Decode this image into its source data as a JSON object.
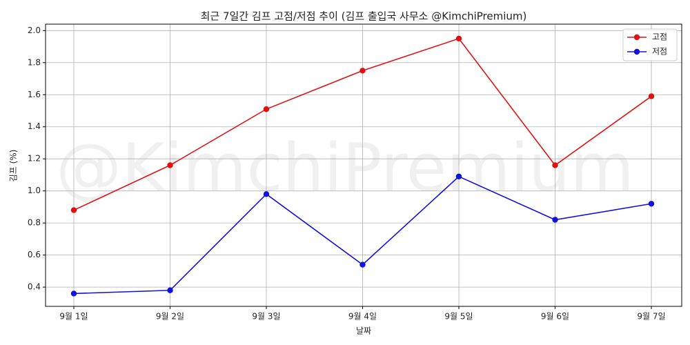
{
  "chart_data": {
    "type": "line",
    "title": "최근 7일간 김프 고점/저점 추이 (김프 출입국 사무소 @KimchiPremium)",
    "watermark": "@KimchiPremium",
    "x_label": "날짜",
    "y_label": "김프 (%)",
    "categories": [
      "9월 1일",
      "9월 2일",
      "9월 3일",
      "9월 4일",
      "9월 5일",
      "9월 6일",
      "9월 7일"
    ],
    "series": [
      {
        "name": "고점",
        "color": "#e01010",
        "values": [
          0.88,
          1.16,
          1.51,
          1.75,
          1.95,
          1.16,
          1.59
        ]
      },
      {
        "name": "저점",
        "color": "#1010e0",
        "values": [
          0.36,
          0.38,
          0.98,
          0.54,
          1.09,
          0.82,
          0.92
        ]
      }
    ],
    "ylim": [
      0.28,
      2.04
    ],
    "yticks": [
      0.4,
      0.6,
      0.8,
      {
        "value": 1,
        "label": "1.0"
      },
      1.2,
      1.4,
      1.6,
      1.8,
      {
        "value": 2,
        "label": "2.0"
      }
    ],
    "grid": true,
    "legend": "upper right"
  }
}
